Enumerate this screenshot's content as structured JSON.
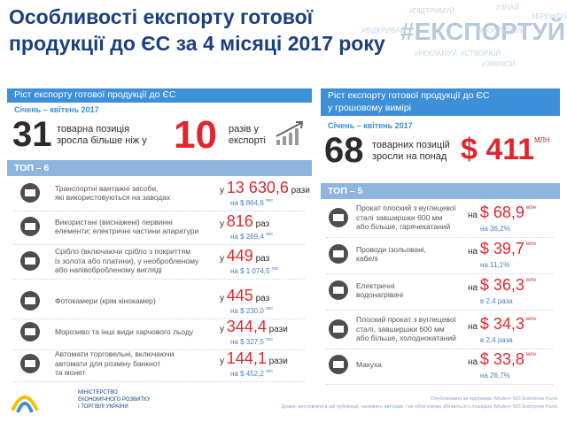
{
  "header": {
    "title": [
      "Особливості експорту готової",
      "продукції до ЄС за 4 місяці 2017 року"
    ],
    "hashtag": "#ЕКСПОРТУЙ",
    "tags": [
      "#ПІДТРИМУЙ",
      "#ЗНАЙ",
      "#БРЕНДУЙ",
      "#ВІДКРИВАЙ",
      "#ДОСЛІДЖУЙ",
      "#РЕКЛАМУЙ",
      "#СТВОРЮЙ",
      "#ЗМІНЮЙ"
    ]
  },
  "left": {
    "heading": [
      "Ріст експорту готової продукції до ЄС"
    ],
    "period": "Січень – квітень 2017",
    "count": "31",
    "count_text": [
      "товарна позиція",
      "зросла більше ніж у"
    ],
    "factor": "10",
    "factor_text": [
      "разів у",
      "експорті"
    ],
    "top_title": "ТОП – 6",
    "items": [
      {
        "label": [
          "Транспортні вантажні засоби,",
          "які використовуються на заводах"
        ],
        "prefix": "у",
        "value": "13 630,6",
        "unit": "рази",
        "sub": "на $ 864,6",
        "sub_unit": "тис"
      },
      {
        "label": [
          "Використані (виснажені) первинні",
          "елементи; електричні частини апаратури"
        ],
        "prefix": "у",
        "value": "816",
        "unit": "раз",
        "sub": "на $ 269,4",
        "sub_unit": "тис"
      },
      {
        "label": [
          "Срібло (включаючи срібло з покриттям",
          "із золота або платини), у необробленому",
          "або напівобробленому вигляді"
        ],
        "prefix": "у",
        "value": "449",
        "unit": "раз",
        "sub": "на $ 1 074,5",
        "sub_unit": "тис"
      },
      {
        "label": [
          "Фотокамери (крім кінокамер)"
        ],
        "prefix": "у",
        "value": "445",
        "unit": "раз",
        "sub": "на $ 230,0",
        "sub_unit": "тис"
      },
      {
        "label": [
          "Морозиво та інші види харчового льоду"
        ],
        "prefix": "у",
        "value": "344,4",
        "unit": "рази",
        "sub": "на $ 327,5",
        "sub_unit": "тис"
      },
      {
        "label": [
          "Автомати торговельні, включаючи",
          "автомати для розміну банкнот",
          "та монет"
        ],
        "prefix": "у",
        "value": "144,1",
        "unit": "рази",
        "sub": "на $ 452,2",
        "sub_unit": "тис"
      }
    ]
  },
  "right": {
    "heading": [
      "Ріст експорту готової продукції до ЄС",
      "у грошовому вимірі"
    ],
    "period": "Січень – квітень 2017",
    "count": "68",
    "count_text": [
      "товарних позицій",
      "зросли на понад"
    ],
    "amount": "$ 411",
    "amount_unit": "МЛН",
    "top_title": "ТОП – 5",
    "items": [
      {
        "label": [
          "Прокат плоский з вуглецевої",
          "сталі завширшки 600 мм",
          "або більше, гарячекатаний"
        ],
        "prefix": "на",
        "value": "$ 68,9",
        "unit": "млн",
        "sub": "на 36,2%"
      },
      {
        "label": [
          "Проводи ізольовані,",
          "кабелі"
        ],
        "prefix": "на",
        "value": "$ 39,7",
        "unit": "млн",
        "sub": "на 11,1%"
      },
      {
        "label": [
          "Електричні",
          "водонагрівачі"
        ],
        "prefix": "на",
        "value": "$ 36,3",
        "unit": "млн",
        "sub": "в 2,4 раза"
      },
      {
        "label": [
          "Плоский прокат з вуглецевої",
          "сталі, завширшки 600 мм",
          "або більше, холоднокатаний"
        ],
        "prefix": "на",
        "value": "$ 34,3",
        "unit": "млн",
        "sub": "в 2,4 раза"
      },
      {
        "label": [
          "Макуха"
        ],
        "prefix": "на",
        "value": "$ 33,8",
        "unit": "млн",
        "sub": "на 26,7%"
      }
    ]
  },
  "footer": {
    "ministry": [
      "МІНІСТЕРСТВО",
      "ЕКОНОМІЧНОГО РОЗВИТКУ",
      "І ТОРГІВЛІ УКРАЇНИ"
    ],
    "disclaimer": [
      "Опубліковано за підтримки Western NIS Enterprise Fund.",
      "Думки, висловлені в цій публікації, належать авторам, і не обов'язково збігаються з позицією Western NIS Enterprise Fund."
    ]
  }
}
